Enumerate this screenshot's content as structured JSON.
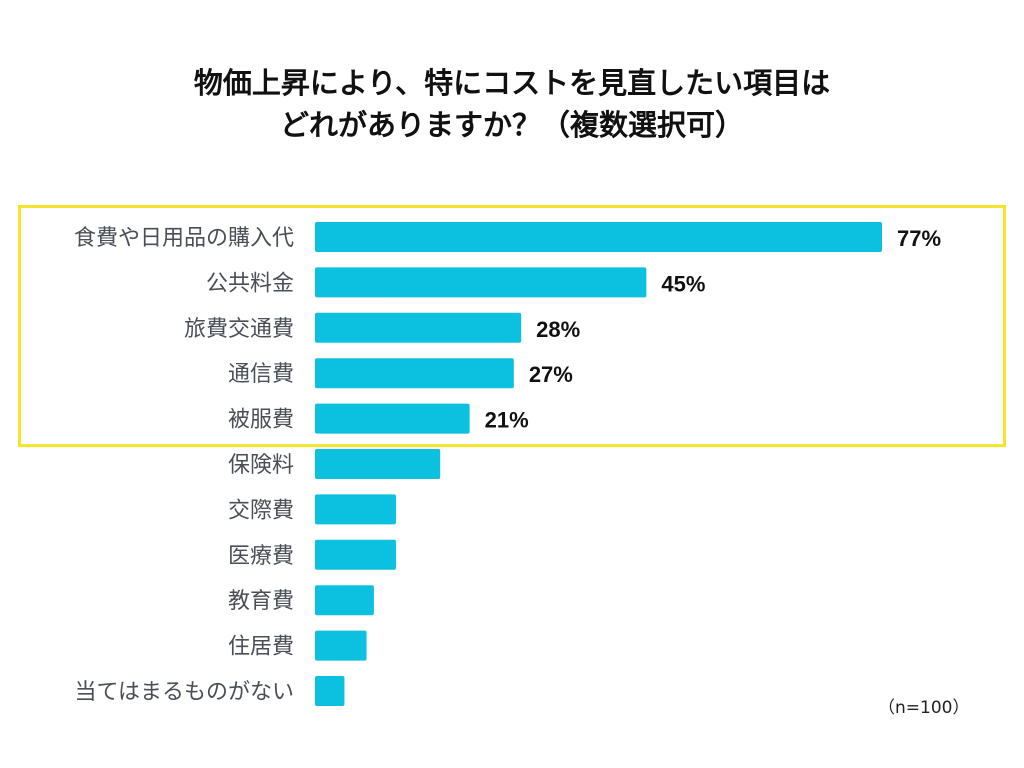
{
  "chart_data": {
    "type": "bar",
    "orientation": "horizontal",
    "title_lines": [
      "物価上昇により、特にコストを見直したい項目は",
      "どれがありますか？（複数選択可）"
    ],
    "categories": [
      "食費や日用品の購入代",
      "公共料金",
      "旅費交通費",
      "通信費",
      "被服費",
      "保険料",
      "交際費",
      "医療費",
      "教育費",
      "住居費",
      "当てはまるものがない"
    ],
    "values": [
      77,
      45,
      28,
      27,
      21,
      17,
      11,
      11,
      8,
      7,
      4
    ],
    "data_labels": [
      "77%",
      "45%",
      "28%",
      "27%",
      "21%",
      "",
      "",
      "",
      "",
      "",
      ""
    ],
    "unit": "%",
    "xlim": [
      0,
      100
    ],
    "grid": false,
    "highlighted_categories": [
      "食費や日用品の購入代",
      "公共料金",
      "旅費交通費",
      "通信費",
      "被服費"
    ],
    "note": "（n=100）",
    "colors": {
      "bar": "#0cc0df",
      "highlight_border": "#f4e52c",
      "label": "#4a4f57",
      "value": "#111111"
    }
  }
}
